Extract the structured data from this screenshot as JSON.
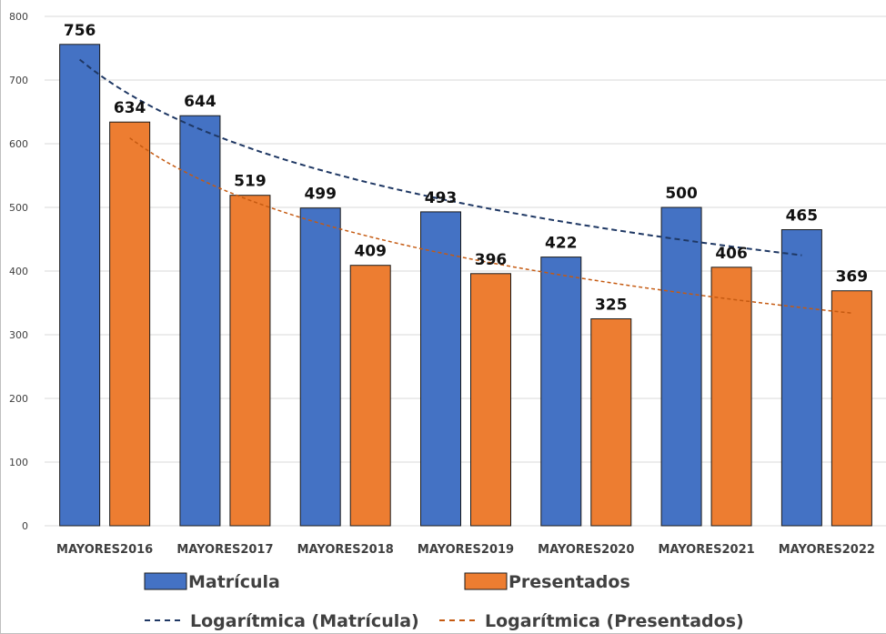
{
  "chart_data": {
    "type": "bar",
    "title": "",
    "xlabel": "",
    "ylabel": "",
    "ylim": [
      0,
      800
    ],
    "yticks": [
      0,
      100,
      200,
      300,
      400,
      500,
      600,
      700,
      800
    ],
    "grid": true,
    "legend_position": "bottom",
    "categories": [
      "MAYORES2016",
      "MAYORES2017",
      "MAYORES2018",
      "MAYORES2019",
      "MAYORES2020",
      "MAYORES2021",
      "MAYORES2022"
    ],
    "series": [
      {
        "name": "Matrícula",
        "values": [
          756,
          644,
          499,
          493,
          422,
          500,
          465
        ],
        "color": "#4472c4"
      },
      {
        "name": "Presentados",
        "values": [
          634,
          519,
          409,
          396,
          325,
          406,
          369
        ],
        "color": "#ed7d31"
      }
    ],
    "trendlines": [
      {
        "name": "Logarítmica (Matrícula)",
        "type": "logarithmic",
        "series": "Matrícula",
        "color": "#1f3864"
      },
      {
        "name": "Logarítmica (Presentados)",
        "type": "logarithmic",
        "series": "Presentados",
        "color": "#c55a11"
      }
    ]
  }
}
